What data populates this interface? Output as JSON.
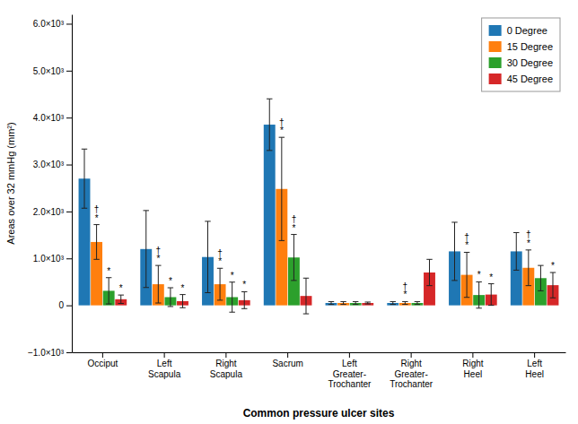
{
  "chart_data": {
    "type": "bar",
    "xlabel": "Common pressure ulcer sites",
    "ylabel": "Areas over 32 mmHg (mm²)",
    "categories": [
      "Occiput",
      "Left\nScapula",
      "Right\nScapula",
      "Sacrum",
      "Left\nGreater-\nTrochanter",
      "Right\nGreater-\nTrochanter",
      "Right\nHeel",
      "Left\nHeel"
    ],
    "series": [
      {
        "name": "0 Degree",
        "values": [
          2700,
          1200,
          1030,
          3850,
          50,
          50,
          1150,
          1150
        ],
        "errors": [
          630,
          820,
          760,
          550,
          30,
          30,
          620,
          400
        ]
      },
      {
        "name": "15 Degree",
        "values": [
          1350,
          450,
          450,
          2480,
          50,
          50,
          650,
          800
        ],
        "errors": [
          370,
          400,
          340,
          1100,
          30,
          30,
          480,
          380
        ],
        "annotations": [
          "†\n*",
          "†\n*",
          "†\n*",
          "†\n*",
          null,
          "†\n*",
          "†\n*",
          "†\n*"
        ]
      },
      {
        "name": "30 Degree",
        "values": [
          310,
          175,
          175,
          1020,
          50,
          50,
          220,
          580
        ],
        "errors": [
          280,
          200,
          320,
          490,
          30,
          30,
          280,
          270
        ],
        "annotations": [
          "*",
          "*",
          "*",
          "†\n*",
          null,
          null,
          "*",
          null
        ]
      },
      {
        "name": "45 Degree",
        "values": [
          130,
          90,
          110,
          200,
          50,
          700,
          230,
          430
        ],
        "errors": [
          90,
          140,
          180,
          380,
          20,
          280,
          230,
          270
        ],
        "annotations": [
          "*",
          "*",
          "*",
          null,
          null,
          null,
          "*",
          "*"
        ]
      }
    ],
    "ylim": [
      -1000,
      6200
    ],
    "yticks": [
      {
        "value": -1000,
        "label": "−1.0×10³"
      },
      0,
      {
        "value": 1000,
        "label": "1.0×10³"
      },
      {
        "value": 2000,
        "label": "2.0×10³"
      },
      {
        "value": 3000,
        "label": "3.0×10³"
      },
      {
        "value": 4000,
        "label": "4.0×10³"
      },
      {
        "value": 5000,
        "label": "5.0×10³"
      },
      {
        "value": 6000,
        "label": "6.0×10³"
      }
    ],
    "grid": false,
    "legend": "upper right"
  }
}
